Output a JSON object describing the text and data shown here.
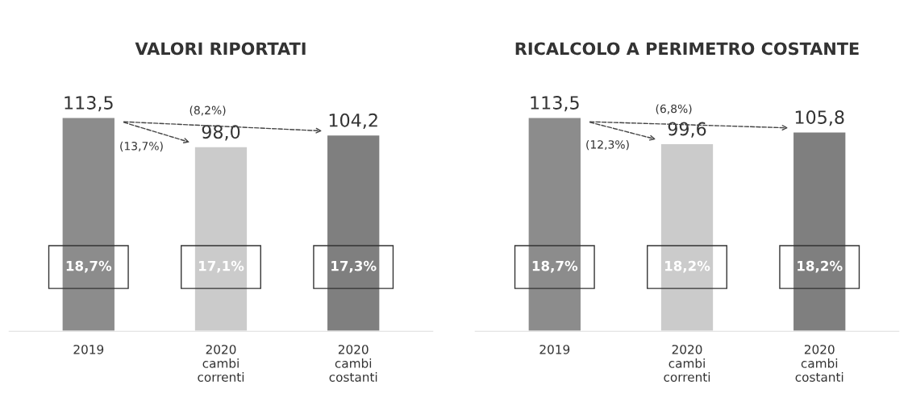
{
  "chart_data": [
    {
      "type": "bar",
      "title": "VALORI RIPORTATI",
      "categories": [
        "2019",
        "2020\ncambi\ncorrenti",
        "2020\ncambi\ncostanti"
      ],
      "values": [
        113.5,
        98.0,
        104.2
      ],
      "colors": [
        "#8c8c8c",
        "#cbcbcb",
        "#7f7f7f"
      ],
      "value_labels": [
        "113,5",
        "98,0",
        "104,2"
      ],
      "annotations": [
        "(8,2%)",
        "(13,7%)",
        "18,7%",
        "17,1%",
        "17,3%"
      ]
    },
    {
      "type": "bar",
      "title": "RICALCOLO A PERIMETRO COSTANTE",
      "categories": [
        "2019",
        "2020\ncambi\ncorrenti",
        "2020\ncambi\ncostanti"
      ],
      "values": [
        113.5,
        99.6,
        105.8
      ],
      "colors": [
        "#8c8c8c",
        "#cbcbcb",
        "#7f7f7f"
      ],
      "value_labels": [
        "113,5",
        "99,6",
        "105,8"
      ],
      "annotations": [
        "(6,8%)",
        "(12,3%)",
        "18,7%",
        "18,2%",
        "18,2%"
      ]
    }
  ]
}
